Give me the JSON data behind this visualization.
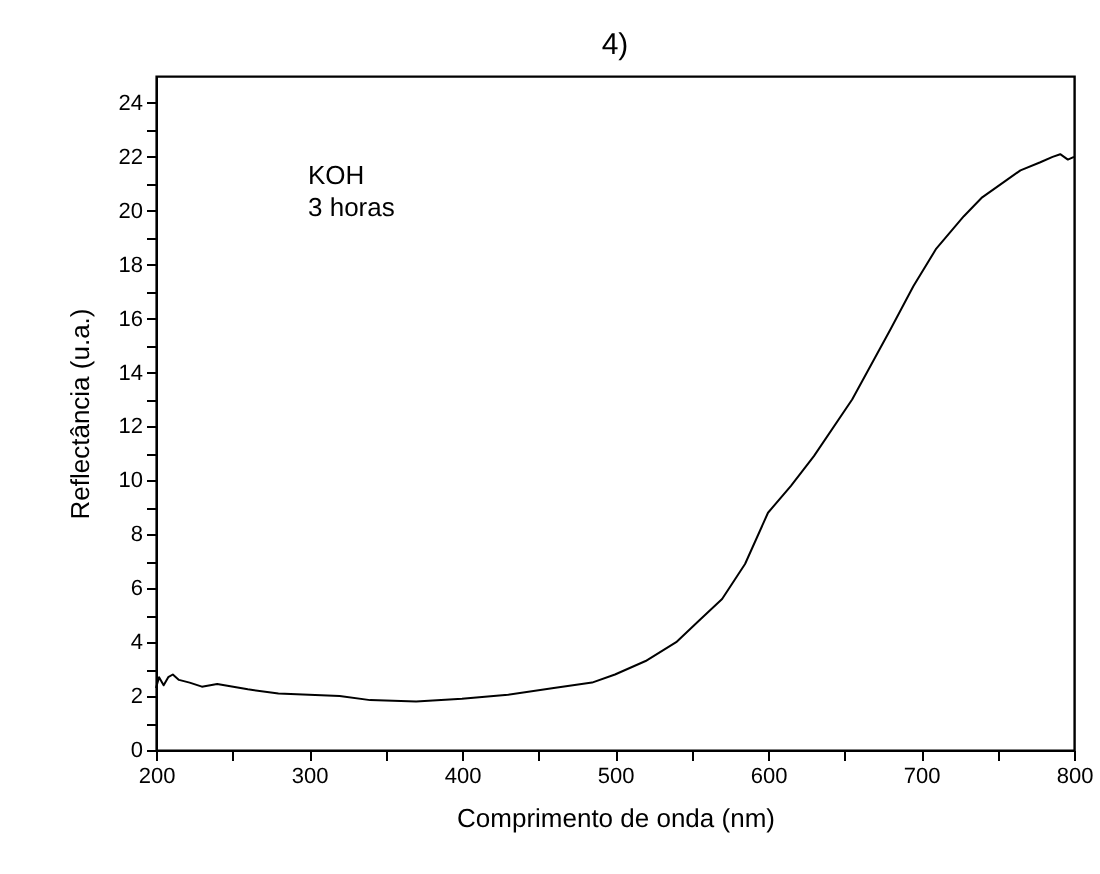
{
  "chart_data": {
    "type": "line",
    "title": "4)",
    "xlabel": "Comprimento de onda (nm)",
    "ylabel": "Reflectância (u.a.)",
    "annotations": [
      "KOH",
      "3 horas"
    ],
    "x": [
      200,
      202,
      205,
      208,
      211,
      215,
      222,
      230,
      240,
      260,
      280,
      300,
      320,
      340,
      370,
      400,
      430,
      460,
      485,
      500,
      520,
      540,
      555,
      570,
      585,
      600,
      615,
      630,
      655,
      680,
      695,
      710,
      728,
      740,
      755,
      765,
      778,
      786,
      791,
      796,
      800
    ],
    "series": [
      {
        "color": "#000000",
        "values": [
          2.3,
          2.7,
          2.4,
          2.7,
          2.8,
          2.6,
          2.5,
          2.35,
          2.45,
          2.25,
          2.1,
          2.05,
          2.0,
          1.85,
          1.8,
          1.9,
          2.05,
          2.3,
          2.5,
          2.8,
          3.3,
          4.0,
          4.8,
          5.6,
          6.9,
          8.8,
          9.8,
          10.9,
          13.0,
          15.6,
          17.2,
          18.6,
          19.8,
          20.5,
          21.1,
          21.5,
          21.8,
          22.0,
          22.1,
          21.9,
          22.0
        ]
      }
    ],
    "xlim": [
      200,
      800
    ],
    "xticks": [
      200,
      {
        "value": 250,
        "label": null
      },
      300,
      {
        "value": 350,
        "label": null
      },
      400,
      {
        "value": 450,
        "label": null
      },
      500,
      {
        "value": 550,
        "label": null
      },
      600,
      {
        "value": 650,
        "label": null
      },
      700,
      {
        "value": 750,
        "label": null
      },
      800
    ],
    "ylim": [
      0,
      25
    ],
    "yticks": [
      0,
      {
        "value": 1,
        "label": null
      },
      2,
      {
        "value": 3,
        "label": null
      },
      4,
      {
        "value": 5,
        "label": null
      },
      6,
      {
        "value": 7,
        "label": null
      },
      8,
      {
        "value": 9,
        "label": null
      },
      10,
      {
        "value": 11,
        "label": null
      },
      12,
      {
        "value": 13,
        "label": null
      },
      14,
      {
        "value": 15,
        "label": null
      },
      16,
      {
        "value": 17,
        "label": null
      },
      18,
      {
        "value": 19,
        "label": null
      },
      20,
      {
        "value": 21,
        "label": null
      },
      22,
      {
        "value": 23,
        "label": null
      },
      24
    ],
    "marker": "none",
    "line_style": "solid"
  }
}
